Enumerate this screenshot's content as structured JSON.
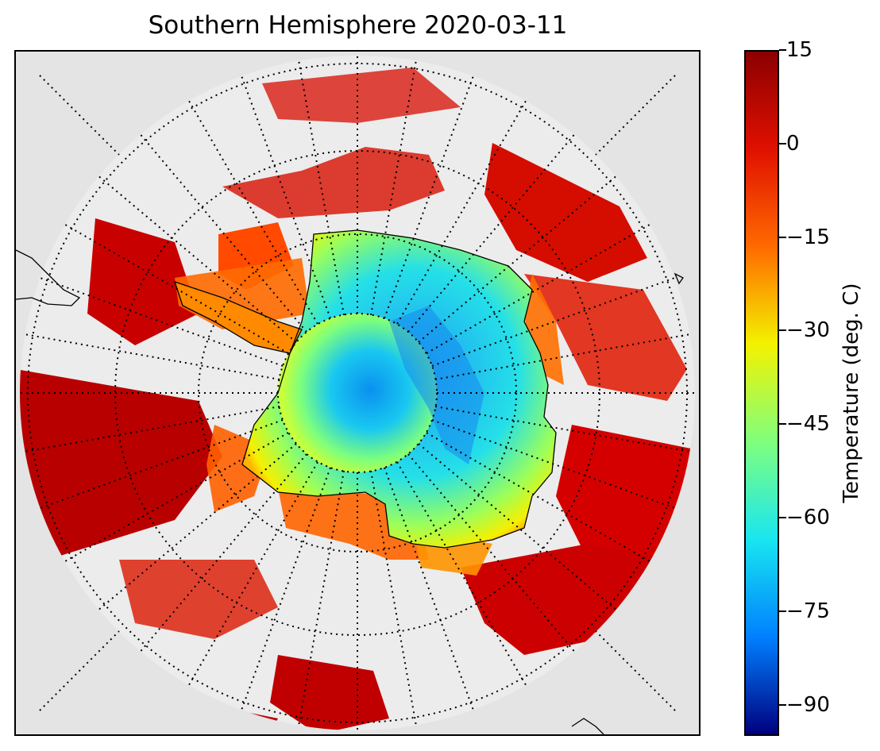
{
  "title": "Southern Hemisphere 2020-03-11",
  "map": {
    "projection": "south polar stereographic",
    "background_color": "#e4e4e4",
    "graticule": "dotted",
    "meridian_spacing_deg": 10,
    "parallels_deg_s": [
      80,
      70,
      60,
      50,
      40,
      30
    ],
    "features": [
      "coastline-antarctica",
      "coastline-south-america",
      "coastline-new-zealand"
    ]
  },
  "colorbar": {
    "label": "Temperature (deg. C)",
    "colormap": "jet",
    "min": -95,
    "max": 15,
    "ticks": [
      "15",
      "0",
      "−15",
      "−30",
      "−45",
      "−60",
      "−75",
      "−90"
    ],
    "tick_values": [
      15,
      0,
      -15,
      -30,
      -45,
      -60,
      -75,
      -90
    ]
  },
  "colors": {
    "dark_red": "#8b0000",
    "red": "#e01000",
    "orange": "#ff6a00",
    "yellow": "#f3f200",
    "green": "#7fff7d",
    "cyan": "#19e6f0",
    "blue": "#0080ff",
    "dark_blue": "#00007f"
  }
}
